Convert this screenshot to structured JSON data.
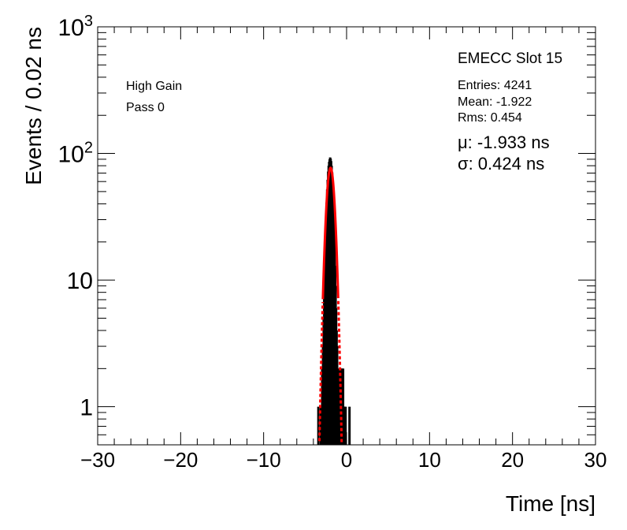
{
  "chart_data": {
    "type": "histogram",
    "title": "",
    "xlabel": "Time [ns]",
    "ylabel": "Events / 0.02 ns",
    "xlim": [
      -30,
      30
    ],
    "ylim": [
      0.5,
      1000
    ],
    "y_scale": "log",
    "grid": false,
    "x_ticks": [
      -30,
      -20,
      -10,
      0,
      10,
      20,
      30
    ],
    "x_tick_labels": [
      "−30",
      "−20",
      "−10",
      "0",
      "10",
      "20",
      "30"
    ],
    "y_ticks": [
      1,
      10,
      100,
      1000
    ],
    "y_tick_labels": [
      "1",
      "10",
      "10^2",
      "10^3"
    ],
    "annotations": {
      "left": [
        "High Gain",
        "Pass 0"
      ],
      "stats_title": "EMECC Slot 15",
      "stats": [
        "Entries: 4241",
        "Mean: -1.922",
        "Rms: 0.454"
      ],
      "fit": [
        "μ: -1.933 ns",
        "σ: 0.424 ns"
      ]
    },
    "series": [
      {
        "name": "",
        "type": "histogram",
        "color": "#000000",
        "bin_width": 0.02,
        "bins": [
          [
            -3.4,
            1
          ],
          [
            -3.1,
            1
          ],
          [
            -2.94,
            2
          ],
          [
            -2.84,
            3
          ],
          [
            -2.76,
            5
          ],
          [
            -2.7,
            8
          ],
          [
            -2.64,
            12
          ],
          [
            -2.58,
            17
          ],
          [
            -2.52,
            23
          ],
          [
            -2.46,
            32
          ],
          [
            -2.4,
            41
          ],
          [
            -2.34,
            52
          ],
          [
            -2.28,
            62
          ],
          [
            -2.22,
            72
          ],
          [
            -2.16,
            80
          ],
          [
            -2.1,
            86
          ],
          [
            -2.04,
            90
          ],
          [
            -1.98,
            93
          ],
          [
            -1.92,
            91
          ],
          [
            -1.86,
            87
          ],
          [
            -1.8,
            80
          ],
          [
            -1.74,
            71
          ],
          [
            -1.68,
            60
          ],
          [
            -1.62,
            49
          ],
          [
            -1.56,
            38
          ],
          [
            -1.5,
            28
          ],
          [
            -1.44,
            20
          ],
          [
            -1.38,
            13
          ],
          [
            -1.32,
            9
          ],
          [
            -1.26,
            6
          ],
          [
            -1.2,
            4
          ],
          [
            -1.14,
            3
          ],
          [
            -1.06,
            2
          ],
          [
            -0.98,
            2
          ],
          [
            -0.9,
            1
          ],
          [
            -0.8,
            2
          ],
          [
            -0.7,
            2
          ],
          [
            -0.6,
            2
          ],
          [
            -0.5,
            2
          ],
          [
            -0.42,
            2
          ],
          [
            -0.34,
            1
          ],
          [
            -0.26,
            1
          ],
          [
            -0.12,
            1
          ],
          [
            0.35,
            1
          ]
        ]
      },
      {
        "name": "",
        "type": "gaussian_fit",
        "color": "#ff0000",
        "mean": -1.933,
        "sigma": 0.424,
        "amplitude": 77
      }
    ]
  }
}
